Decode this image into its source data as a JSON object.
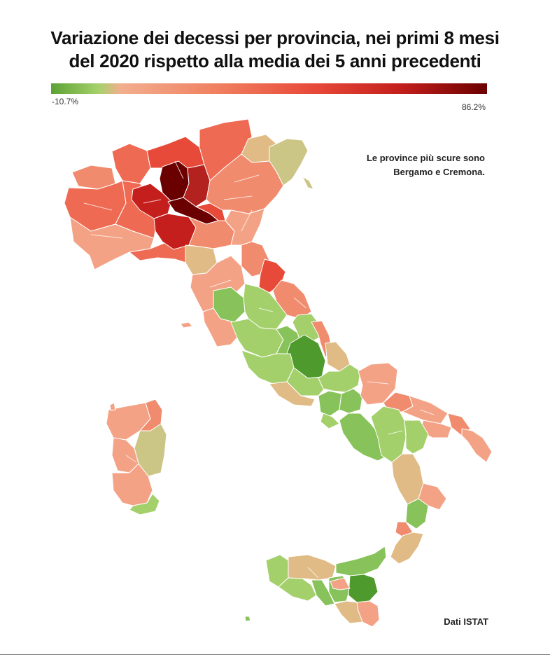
{
  "title": {
    "line1": "Variazione dei decessi per provincia, nei primi 8 mesi",
    "line2": "del 2020 rispetto alla media dei 5 anni precedenti"
  },
  "legend": {
    "min": "-10.7%",
    "max": "86.2%",
    "min_value": -10.7,
    "max_value": 86.2,
    "scale_colors": [
      "#5ca234",
      "#a6d16b",
      "#f2ae8e",
      "#f08060",
      "#e84a3a",
      "#c41f1c",
      "#6b0000"
    ]
  },
  "annotation": {
    "line1": "Le province più scure sono",
    "line2": "Bergamo e Cremona."
  },
  "source": "Dati ISTAT",
  "colors": {
    "darkest": "#6b0000",
    "dark_red": "#b3221e",
    "red": "#d7302a",
    "coral": "#ee6a52",
    "salmon": "#f08b6e",
    "light_salmon": "#f4a286",
    "tan": "#e1bb86",
    "olive": "#ccc686",
    "light_green": "#a4d06c",
    "green": "#87c25a",
    "dark_green": "#4e9a2c"
  }
}
